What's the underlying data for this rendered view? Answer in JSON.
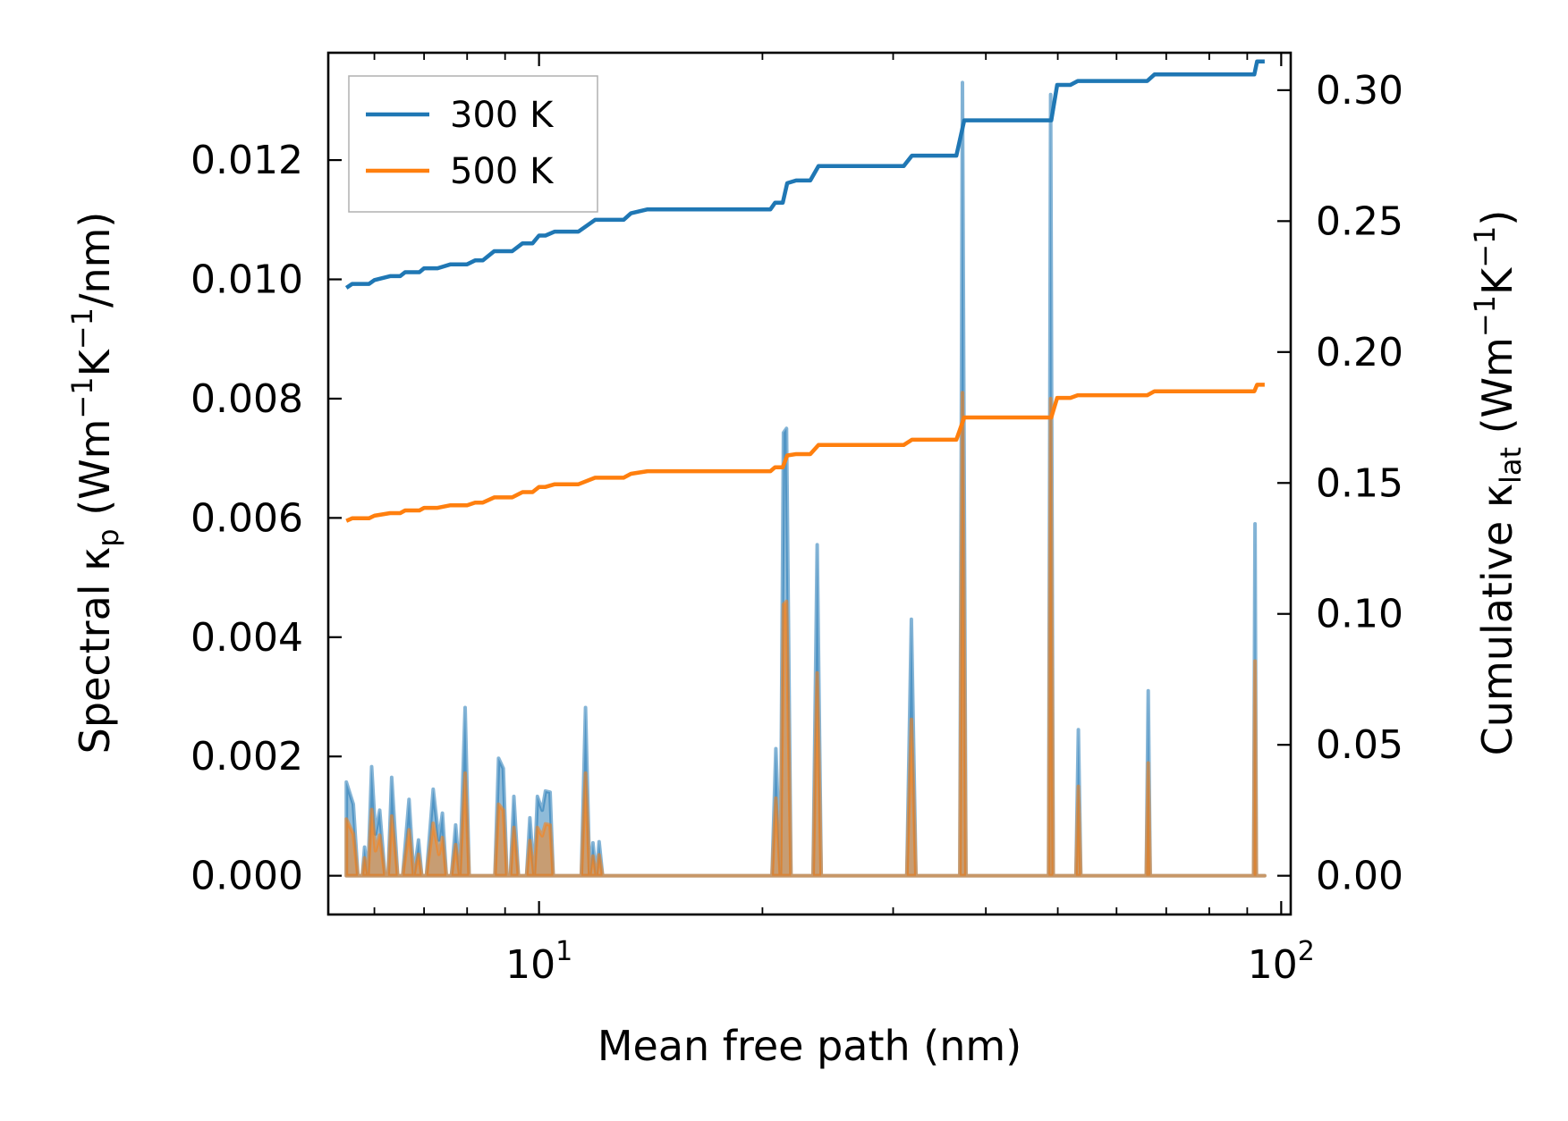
{
  "chart_data": {
    "type": "line",
    "xscale": "log",
    "xlim": [
      5.2,
      103
    ],
    "xlabel": "Mean free path (nm)",
    "x_tick_labels": [
      {
        "value": 10,
        "base": "10",
        "exp": "1"
      },
      {
        "value": 100,
        "base": "10",
        "exp": "2"
      }
    ],
    "left_axis": {
      "label_parts": [
        "Spectral κ",
        "p",
        " (Wm",
        "−1",
        "K",
        "−1",
        "/nm)"
      ],
      "ylim": [
        -0.00065,
        0.0138
      ],
      "ticks": [
        0.0,
        0.002,
        0.004,
        0.006,
        0.008,
        0.01,
        0.012
      ],
      "tick_labels": [
        "0.000",
        "0.002",
        "0.004",
        "0.006",
        "0.008",
        "0.010",
        "0.012"
      ]
    },
    "right_axis": {
      "label_parts": [
        "Cumulative κ",
        "lat",
        " (Wm",
        "−1",
        "K",
        "−1",
        ")"
      ],
      "ylim": [
        -0.0148,
        0.3143
      ],
      "ticks": [
        0.0,
        0.05,
        0.1,
        0.15,
        0.2,
        0.25,
        0.3
      ],
      "tick_labels": [
        "0.00",
        "0.05",
        "0.10",
        "0.15",
        "0.20",
        "0.25",
        "0.30"
      ]
    },
    "legend": {
      "position": "upper-left",
      "entries": [
        {
          "label": "300 K",
          "color": "#1f77b4"
        },
        {
          "label": "500 K",
          "color": "#ff7f0e"
        }
      ]
    },
    "series": [
      {
        "name": "300 K",
        "axis": "right",
        "kind": "cumulative",
        "color": "#1f77b4",
        "points": [
          [
            5.5,
            0.2245
          ],
          [
            5.6,
            0.226
          ],
          [
            5.9,
            0.226
          ],
          [
            6.0,
            0.2275
          ],
          [
            6.3,
            0.229
          ],
          [
            6.5,
            0.229
          ],
          [
            6.6,
            0.2305
          ],
          [
            6.9,
            0.2305
          ],
          [
            7.0,
            0.232
          ],
          [
            7.3,
            0.232
          ],
          [
            7.6,
            0.2335
          ],
          [
            8.0,
            0.2335
          ],
          [
            8.2,
            0.235
          ],
          [
            8.4,
            0.235
          ],
          [
            8.7,
            0.2385
          ],
          [
            9.2,
            0.2385
          ],
          [
            9.5,
            0.2415
          ],
          [
            9.8,
            0.2415
          ],
          [
            10.0,
            0.2445
          ],
          [
            10.2,
            0.2445
          ],
          [
            10.5,
            0.246
          ],
          [
            11.3,
            0.246
          ],
          [
            11.9,
            0.2505
          ],
          [
            13.0,
            0.2505
          ],
          [
            13.3,
            0.253
          ],
          [
            14.0,
            0.2545
          ],
          [
            15.0,
            0.2545
          ],
          [
            20.5,
            0.2545
          ],
          [
            20.8,
            0.257
          ],
          [
            21.3,
            0.257
          ],
          [
            21.6,
            0.2645
          ],
          [
            22.2,
            0.2655
          ],
          [
            23.2,
            0.2655
          ],
          [
            23.8,
            0.271
          ],
          [
            31.0,
            0.271
          ],
          [
            31.8,
            0.275
          ],
          [
            36.5,
            0.275
          ],
          [
            37.4,
            0.2885
          ],
          [
            49.0,
            0.2885
          ],
          [
            49.9,
            0.302
          ],
          [
            52.0,
            0.302
          ],
          [
            53.2,
            0.3035
          ],
          [
            66.0,
            0.3035
          ],
          [
            67.5,
            0.306
          ],
          [
            80.5,
            0.306
          ],
          [
            92.0,
            0.306
          ],
          [
            92.8,
            0.311
          ],
          [
            95.0,
            0.311
          ]
        ]
      },
      {
        "name": "500 K",
        "axis": "right",
        "kind": "cumulative",
        "color": "#ff7f0e",
        "points": [
          [
            5.5,
            0.1355
          ],
          [
            5.6,
            0.1365
          ],
          [
            5.9,
            0.1365
          ],
          [
            6.0,
            0.1375
          ],
          [
            6.3,
            0.1385
          ],
          [
            6.5,
            0.1385
          ],
          [
            6.6,
            0.1395
          ],
          [
            6.9,
            0.1395
          ],
          [
            7.0,
            0.1405
          ],
          [
            7.3,
            0.1405
          ],
          [
            7.6,
            0.1415
          ],
          [
            8.0,
            0.1415
          ],
          [
            8.2,
            0.1425
          ],
          [
            8.4,
            0.1425
          ],
          [
            8.7,
            0.1445
          ],
          [
            9.2,
            0.1445
          ],
          [
            9.5,
            0.1465
          ],
          [
            9.8,
            0.1465
          ],
          [
            10.0,
            0.1485
          ],
          [
            10.2,
            0.1485
          ],
          [
            10.5,
            0.1495
          ],
          [
            11.3,
            0.1495
          ],
          [
            11.9,
            0.152
          ],
          [
            13.0,
            0.152
          ],
          [
            13.3,
            0.1535
          ],
          [
            14.0,
            0.1545
          ],
          [
            15.0,
            0.1545
          ],
          [
            20.5,
            0.1545
          ],
          [
            20.8,
            0.156
          ],
          [
            21.3,
            0.156
          ],
          [
            21.6,
            0.1605
          ],
          [
            22.2,
            0.161
          ],
          [
            23.2,
            0.161
          ],
          [
            23.8,
            0.1645
          ],
          [
            31.0,
            0.1645
          ],
          [
            31.8,
            0.1665
          ],
          [
            36.5,
            0.1665
          ],
          [
            37.4,
            0.175
          ],
          [
            49.0,
            0.175
          ],
          [
            49.9,
            0.1825
          ],
          [
            52.0,
            0.1825
          ],
          [
            53.2,
            0.1835
          ],
          [
            66.0,
            0.1835
          ],
          [
            67.5,
            0.185
          ],
          [
            80.5,
            0.185
          ],
          [
            92.0,
            0.185
          ],
          [
            92.8,
            0.1875
          ],
          [
            95.0,
            0.1875
          ]
        ]
      },
      {
        "name": "300 K spectral",
        "axis": "left",
        "kind": "spectral",
        "color": "#1f77b4",
        "points": [
          [
            5.5,
            0.0
          ],
          [
            5.5,
            0.00157
          ],
          [
            5.62,
            0.0012
          ],
          [
            5.7,
            0.0
          ],
          [
            5.78,
            0.0
          ],
          [
            5.82,
            0.00048
          ],
          [
            5.88,
            0.0
          ],
          [
            5.95,
            0.00183
          ],
          [
            6.02,
            0.0007
          ],
          [
            6.1,
            0.0011
          ],
          [
            6.2,
            0.0
          ],
          [
            6.26,
            0.0
          ],
          [
            6.33,
            0.00165
          ],
          [
            6.45,
            0.0
          ],
          [
            6.55,
            0.0
          ],
          [
            6.68,
            0.00128
          ],
          [
            6.78,
            0.0
          ],
          [
            6.88,
            0.0006
          ],
          [
            6.95,
            0.0
          ],
          [
            7.05,
            0.0
          ],
          [
            7.2,
            0.00145
          ],
          [
            7.33,
            0.0006
          ],
          [
            7.41,
            0.00105
          ],
          [
            7.5,
            0.0
          ],
          [
            7.62,
            0.0
          ],
          [
            7.72,
            0.00085
          ],
          [
            7.82,
            0.0
          ],
          [
            7.95,
            0.00282
          ],
          [
            8.05,
            0.0
          ],
          [
            8.72,
            0.0
          ],
          [
            8.82,
            0.00197
          ],
          [
            8.95,
            0.0018
          ],
          [
            9.05,
            0.0
          ],
          [
            9.15,
            0.0
          ],
          [
            9.25,
            0.00133
          ],
          [
            9.38,
            0.0
          ],
          [
            9.62,
            0.0
          ],
          [
            9.72,
            0.00097
          ],
          [
            9.85,
            0.0
          ],
          [
            9.95,
            0.00133
          ],
          [
            10.1,
            0.0011
          ],
          [
            10.2,
            0.00142
          ],
          [
            10.35,
            0.0014
          ],
          [
            10.45,
            0.0
          ],
          [
            11.4,
            0.0
          ],
          [
            11.55,
            0.00282
          ],
          [
            11.7,
            0.0
          ],
          [
            11.82,
            0.00055
          ],
          [
            11.95,
            0.0
          ],
          [
            12.05,
            0.00057
          ],
          [
            12.18,
            0.0
          ],
          [
            20.6,
            0.0
          ],
          [
            20.85,
            0.00213
          ],
          [
            21.15,
            0.0
          ],
          [
            21.35,
            0.00743
          ],
          [
            21.55,
            0.0075
          ],
          [
            21.85,
            0.0
          ],
          [
            23.4,
            0.0
          ],
          [
            23.7,
            0.00555
          ],
          [
            24.0,
            0.0
          ],
          [
            31.3,
            0.0
          ],
          [
            31.75,
            0.0043
          ],
          [
            32.2,
            0.0
          ],
          [
            36.9,
            0.0
          ],
          [
            37.2,
            0.0133
          ],
          [
            37.6,
            0.0
          ],
          [
            48.6,
            0.0
          ],
          [
            48.9,
            0.0131
          ],
          [
            49.3,
            0.0
          ],
          [
            52.9,
            0.0
          ],
          [
            53.3,
            0.00245
          ],
          [
            53.7,
            0.0
          ],
          [
            65.8,
            0.0
          ],
          [
            66.2,
            0.0031
          ],
          [
            66.6,
            0.0
          ],
          [
            91.8,
            0.0
          ],
          [
            92.2,
            0.0059
          ],
          [
            92.6,
            0.0
          ],
          [
            95.0,
            0.0
          ]
        ]
      },
      {
        "name": "500 K spectral",
        "axis": "left",
        "kind": "spectral",
        "color": "#ff7f0e",
        "points": [
          [
            5.5,
            0.0
          ],
          [
            5.5,
            0.00095
          ],
          [
            5.62,
            0.0007
          ],
          [
            5.7,
            0.0
          ],
          [
            5.78,
            0.0
          ],
          [
            5.82,
            0.0003
          ],
          [
            5.88,
            0.0
          ],
          [
            5.95,
            0.00111
          ],
          [
            6.02,
            0.00042
          ],
          [
            6.1,
            0.00068
          ],
          [
            6.2,
            0.0
          ],
          [
            6.26,
            0.0
          ],
          [
            6.33,
            0.001
          ],
          [
            6.45,
            0.0
          ],
          [
            6.55,
            0.0
          ],
          [
            6.68,
            0.00077
          ],
          [
            6.78,
            0.0
          ],
          [
            6.88,
            0.00036
          ],
          [
            6.95,
            0.0
          ],
          [
            7.05,
            0.0
          ],
          [
            7.2,
            0.00088
          ],
          [
            7.33,
            0.00036
          ],
          [
            7.41,
            0.00064
          ],
          [
            7.5,
            0.0
          ],
          [
            7.62,
            0.0
          ],
          [
            7.72,
            0.00052
          ],
          [
            7.82,
            0.0
          ],
          [
            7.95,
            0.00172
          ],
          [
            8.05,
            0.0
          ],
          [
            8.72,
            0.0
          ],
          [
            8.82,
            0.0012
          ],
          [
            8.95,
            0.0011
          ],
          [
            9.05,
            0.0
          ],
          [
            9.15,
            0.0
          ],
          [
            9.25,
            0.00081
          ],
          [
            9.38,
            0.0
          ],
          [
            9.62,
            0.0
          ],
          [
            9.72,
            0.00059
          ],
          [
            9.85,
            0.0
          ],
          [
            9.95,
            0.00081
          ],
          [
            10.1,
            0.00067
          ],
          [
            10.2,
            0.00087
          ],
          [
            10.35,
            0.00085
          ],
          [
            10.45,
            0.0
          ],
          [
            11.4,
            0.0
          ],
          [
            11.55,
            0.00172
          ],
          [
            11.7,
            0.0
          ],
          [
            11.82,
            0.00033
          ],
          [
            11.95,
            0.0
          ],
          [
            12.05,
            0.00035
          ],
          [
            12.18,
            0.0
          ],
          [
            20.6,
            0.0
          ],
          [
            20.85,
            0.0013
          ],
          [
            21.15,
            0.0
          ],
          [
            21.35,
            0.00455
          ],
          [
            21.55,
            0.0046
          ],
          [
            21.85,
            0.0
          ],
          [
            23.4,
            0.0
          ],
          [
            23.7,
            0.0034
          ],
          [
            24.0,
            0.0
          ],
          [
            31.3,
            0.0
          ],
          [
            31.75,
            0.00262
          ],
          [
            32.2,
            0.0
          ],
          [
            36.9,
            0.0
          ],
          [
            37.2,
            0.0081
          ],
          [
            37.6,
            0.0
          ],
          [
            48.6,
            0.0
          ],
          [
            48.9,
            0.008
          ],
          [
            49.3,
            0.0
          ],
          [
            52.9,
            0.0
          ],
          [
            53.3,
            0.0015
          ],
          [
            53.7,
            0.0
          ],
          [
            65.8,
            0.0
          ],
          [
            66.2,
            0.00189
          ],
          [
            66.6,
            0.0
          ],
          [
            91.8,
            0.0
          ],
          [
            92.2,
            0.0036
          ],
          [
            92.6,
            0.0
          ],
          [
            95.0,
            0.0
          ]
        ]
      }
    ]
  }
}
